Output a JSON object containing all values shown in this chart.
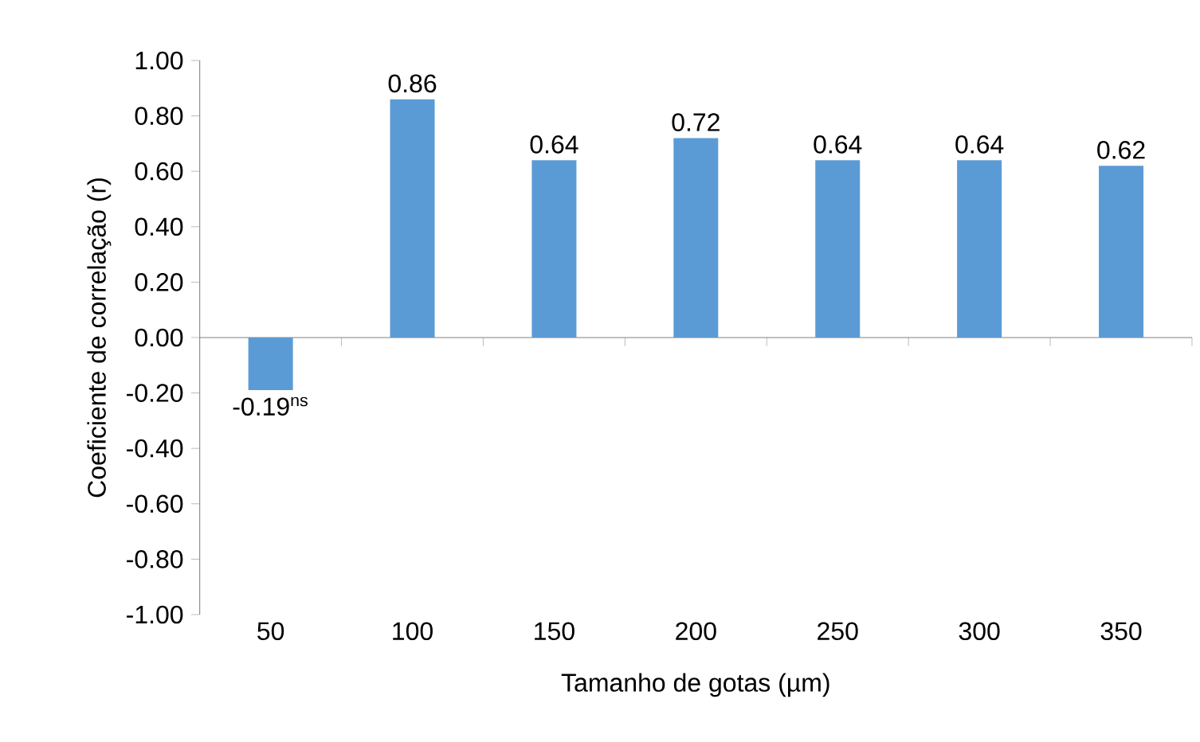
{
  "chart_data": {
    "type": "bar",
    "xlabel": "Tamanho de gotas (µm)",
    "ylabel": "Coeficiente de correlação (r)",
    "categories": [
      "50",
      "100",
      "150",
      "200",
      "250",
      "300",
      "350"
    ],
    "values": [
      -0.19,
      0.86,
      0.64,
      0.72,
      0.64,
      0.64,
      0.62
    ],
    "value_labels": [
      "-0.19$^{ns}$",
      "0.86",
      "0.64",
      "0.72",
      "0.64",
      "0.64",
      "0.62"
    ],
    "color": "#5b9bd5",
    "ylim": [
      -1,
      1
    ],
    "yticks": [
      {
        "value": -1,
        "label": "-1.00"
      },
      {
        "value": -0.8,
        "label": "-0.80"
      },
      {
        "value": -0.6,
        "label": "-0.60"
      },
      {
        "value": -0.4,
        "label": "-0.40"
      },
      {
        "value": -0.2,
        "label": "-0.20"
      },
      {
        "value": 0,
        "label": "0.00"
      },
      {
        "value": 0.2,
        "label": "0.20"
      },
      {
        "value": 0.4,
        "label": "0.40"
      },
      {
        "value": 0.6,
        "label": "0.60"
      },
      {
        "value": 0.8,
        "label": "0.80"
      },
      {
        "value": 1,
        "label": "1.00"
      }
    ]
  }
}
